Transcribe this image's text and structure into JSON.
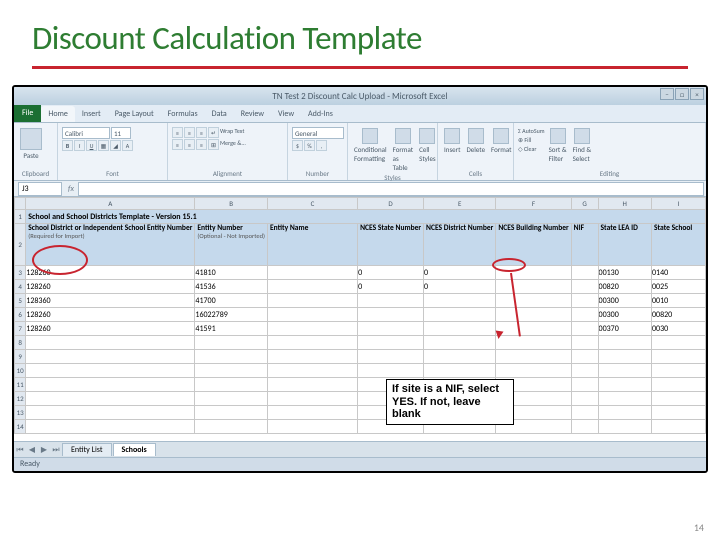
{
  "slide": {
    "title": "Discount Calculation Template",
    "title_color": "#2e7d32",
    "accent_color": "#c8242f",
    "page_number": "14"
  },
  "window": {
    "title": "TN Test 2 Discount Calc Upload - Microsoft Excel",
    "tabs": [
      "File",
      "Home",
      "Insert",
      "Page Layout",
      "Formulas",
      "Data",
      "Review",
      "View",
      "Add-Ins"
    ],
    "active_tab": "Home",
    "ribbon_groups": [
      "Clipboard",
      "Font",
      "Alignment",
      "Number",
      "Styles",
      "Cells",
      "Editing"
    ],
    "font_name": "Calibri",
    "font_size": "11",
    "number_format": "General",
    "namebox": "J3",
    "status": "Ready",
    "sheet_tabs": [
      "Entity List",
      "Schools"
    ],
    "active_sheet": "Schools"
  },
  "grid": {
    "col_letters": [
      "A",
      "B",
      "C",
      "D",
      "E",
      "F",
      "G",
      "H",
      "I"
    ],
    "row1_title": "School and School Districts Template - Version 15.1",
    "header_top": [
      "School District or Independent School Entity Number",
      "Entity Number",
      "Entity Name",
      "NCES State Number",
      "NCES District Number",
      "NCES Building Number",
      "NIF",
      "State LEA ID",
      "State School"
    ],
    "header_sub": [
      "(Required for Import)",
      "(Optional - Not Imported)",
      "",
      "",
      "",
      "",
      "",
      "",
      ""
    ],
    "rows": [
      {
        "n": "3",
        "cells": [
          "128260",
          "41810",
          "",
          "0",
          "0",
          "",
          "",
          "00130",
          "0140"
        ]
      },
      {
        "n": "4",
        "cells": [
          "128260",
          "41536",
          "",
          "0",
          "0",
          "",
          "",
          "00820",
          "0025"
        ]
      },
      {
        "n": "5",
        "cells": [
          "128360",
          "41700",
          "",
          "",
          "",
          "",
          "",
          "00300",
          "0010"
        ]
      },
      {
        "n": "6",
        "cells": [
          "128260",
          "16022789",
          "",
          "",
          "",
          "",
          "",
          "00300",
          "00820"
        ]
      },
      {
        "n": "7",
        "cells": [
          "128260",
          "41591",
          "",
          "",
          "",
          "",
          "",
          "00370",
          "0030"
        ]
      },
      {
        "n": "8",
        "cells": [
          "",
          "",
          "",
          "",
          "",
          "",
          "",
          "",
          ""
        ]
      },
      {
        "n": "9",
        "cells": [
          "",
          "",
          "",
          "",
          "",
          "",
          "",
          "",
          ""
        ]
      },
      {
        "n": "10",
        "cells": [
          "",
          "",
          "",
          "",
          "",
          "",
          "",
          "",
          ""
        ]
      },
      {
        "n": "11",
        "cells": [
          "",
          "",
          "",
          "",
          "",
          "",
          "",
          "",
          ""
        ]
      },
      {
        "n": "12",
        "cells": [
          "",
          "",
          "",
          "",
          "",
          "",
          "",
          "",
          ""
        ]
      },
      {
        "n": "13",
        "cells": [
          "",
          "",
          "",
          "",
          "",
          "",
          "",
          "",
          ""
        ]
      },
      {
        "n": "14",
        "cells": [
          "",
          "",
          "",
          "",
          "",
          "",
          "",
          "",
          ""
        ]
      }
    ]
  },
  "callout": {
    "text": "If site is a NIF, select YES. If not, leave blank"
  }
}
